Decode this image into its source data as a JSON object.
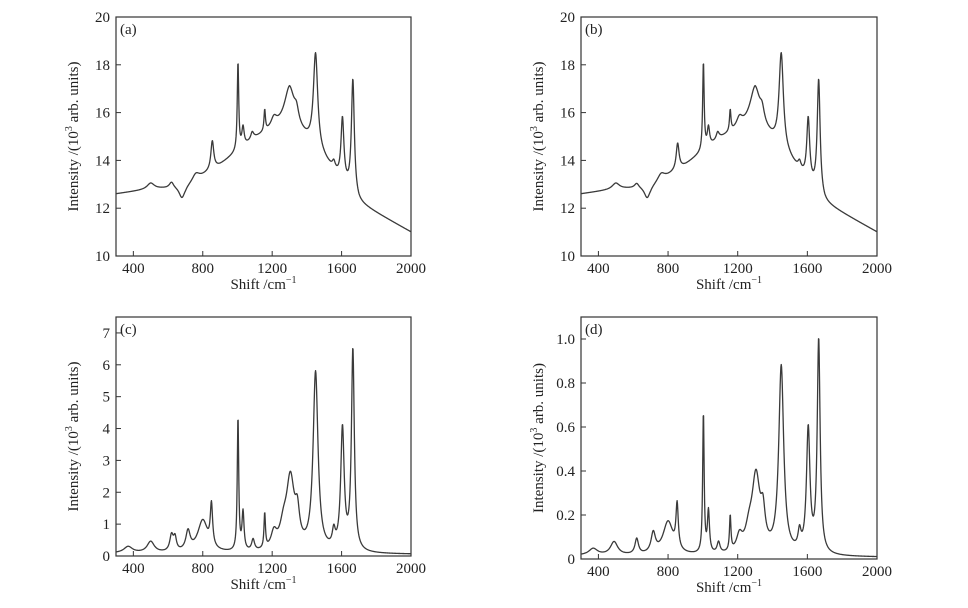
{
  "figure": {
    "panels": [
      "a",
      "b",
      "c",
      "d"
    ]
  },
  "chart_data": [
    {
      "type": "line",
      "panel_label": "(a)",
      "xlabel": "Shift /cm",
      "xlabel_sup": "−1",
      "ylabel": "Intensity /(10",
      "ylabel_sup": "3",
      "ylabel_tail": " arb. units)",
      "xlim": [
        300,
        2000
      ],
      "ylim": [
        10,
        20
      ],
      "xticks": [
        400,
        800,
        1200,
        1600,
        2000
      ],
      "yticks": [
        10,
        12,
        14,
        16,
        18,
        20
      ],
      "grid": false,
      "baseline": {
        "x": [
          300,
          500,
          700,
          900,
          1100,
          1300,
          1500,
          1700,
          2000
        ],
        "y": [
          12.6,
          12.8,
          12.9,
          13.8,
          14.9,
          15.6,
          14.0,
          12.2,
          11.0
        ]
      },
      "peaks": [
        {
          "x": 500,
          "h": 0.25,
          "w": 25
        },
        {
          "x": 620,
          "h": 0.25,
          "w": 15
        },
        {
          "x": 680,
          "h": -0.5,
          "w": 20
        },
        {
          "x": 760,
          "h": 0.3,
          "w": 25
        },
        {
          "x": 855,
          "h": 1.2,
          "w": 10
        },
        {
          "x": 1003,
          "h": 3.7,
          "w": 5
        },
        {
          "x": 1032,
          "h": 0.8,
          "w": 8
        },
        {
          "x": 1085,
          "h": 0.3,
          "w": 10
        },
        {
          "x": 1157,
          "h": 0.9,
          "w": 5
        },
        {
          "x": 1210,
          "h": 0.4,
          "w": 20
        },
        {
          "x": 1300,
          "h": 1.4,
          "w": 35
        },
        {
          "x": 1340,
          "h": 0.5,
          "w": 15
        },
        {
          "x": 1450,
          "h": 4.0,
          "w": 15
        },
        {
          "x": 1555,
          "h": 0.3,
          "w": 10
        },
        {
          "x": 1605,
          "h": 2.6,
          "w": 10
        },
        {
          "x": 1665,
          "h": 4.8,
          "w": 10
        }
      ]
    },
    {
      "type": "line",
      "panel_label": "(b)",
      "xlabel": "Shift /cm",
      "xlabel_sup": "−1",
      "ylabel": "Intensity /(10",
      "ylabel_sup": "3",
      "ylabel_tail": " arb. units)",
      "xlim": [
        300,
        2000
      ],
      "ylim": [
        10,
        20
      ],
      "xticks": [
        400,
        800,
        1200,
        1600,
        2000
      ],
      "yticks": [
        10,
        12,
        14,
        16,
        18,
        20
      ],
      "grid": false,
      "baseline": {
        "x": [
          300,
          500,
          700,
          900,
          1100,
          1300,
          1500,
          1700,
          2000
        ],
        "y": [
          12.6,
          12.8,
          12.9,
          13.8,
          14.9,
          15.6,
          14.0,
          12.2,
          11.0
        ]
      },
      "peaks": [
        {
          "x": 500,
          "h": 0.25,
          "w": 25
        },
        {
          "x": 620,
          "h": 0.2,
          "w": 15
        },
        {
          "x": 680,
          "h": -0.5,
          "w": 20
        },
        {
          "x": 760,
          "h": 0.3,
          "w": 25
        },
        {
          "x": 855,
          "h": 1.1,
          "w": 10
        },
        {
          "x": 1003,
          "h": 3.7,
          "w": 5
        },
        {
          "x": 1032,
          "h": 0.8,
          "w": 8
        },
        {
          "x": 1085,
          "h": 0.3,
          "w": 10
        },
        {
          "x": 1157,
          "h": 0.9,
          "w": 5
        },
        {
          "x": 1210,
          "h": 0.4,
          "w": 20
        },
        {
          "x": 1300,
          "h": 1.4,
          "w": 35
        },
        {
          "x": 1340,
          "h": 0.5,
          "w": 15
        },
        {
          "x": 1450,
          "h": 4.0,
          "w": 15
        },
        {
          "x": 1555,
          "h": 0.3,
          "w": 10
        },
        {
          "x": 1605,
          "h": 2.6,
          "w": 10
        },
        {
          "x": 1665,
          "h": 4.8,
          "w": 10
        }
      ]
    },
    {
      "type": "line",
      "panel_label": "(c)",
      "xlabel": "Shift /cm",
      "xlabel_sup": "−1",
      "ylabel": "Intensity /(10",
      "ylabel_sup": "3",
      "ylabel_tail": " arb. units)",
      "xlim": [
        300,
        2000
      ],
      "ylim": [
        0,
        7.5
      ],
      "xticks": [
        400,
        800,
        1200,
        1600,
        2000
      ],
      "yticks": [
        0,
        1,
        2,
        3,
        4,
        5,
        6,
        7
      ],
      "grid": false,
      "baseline": {
        "x": [
          300,
          2000
        ],
        "y": [
          0.08,
          0.05
        ]
      },
      "peaks": [
        {
          "x": 370,
          "h": 0.2,
          "w": 30
        },
        {
          "x": 500,
          "h": 0.35,
          "w": 25
        },
        {
          "x": 620,
          "h": 0.5,
          "w": 12
        },
        {
          "x": 640,
          "h": 0.4,
          "w": 10
        },
        {
          "x": 715,
          "h": 0.6,
          "w": 15
        },
        {
          "x": 800,
          "h": 1.0,
          "w": 35
        },
        {
          "x": 850,
          "h": 1.3,
          "w": 8
        },
        {
          "x": 1003,
          "h": 4.2,
          "w": 5
        },
        {
          "x": 1032,
          "h": 1.2,
          "w": 7
        },
        {
          "x": 1090,
          "h": 0.35,
          "w": 10
        },
        {
          "x": 1157,
          "h": 1.1,
          "w": 5
        },
        {
          "x": 1210,
          "h": 0.5,
          "w": 20
        },
        {
          "x": 1265,
          "h": 0.6,
          "w": 25
        },
        {
          "x": 1305,
          "h": 2.2,
          "w": 28
        },
        {
          "x": 1345,
          "h": 0.9,
          "w": 15
        },
        {
          "x": 1450,
          "h": 5.6,
          "w": 17
        },
        {
          "x": 1555,
          "h": 0.5,
          "w": 10
        },
        {
          "x": 1605,
          "h": 3.8,
          "w": 12
        },
        {
          "x": 1665,
          "h": 6.3,
          "w": 10
        }
      ]
    },
    {
      "type": "line",
      "panel_label": "(d)",
      "xlabel": "Shift /cm",
      "xlabel_sup": "−1",
      "ylabel": "Intensity /(10",
      "ylabel_sup": "3",
      "ylabel_tail": " arb. units)",
      "xlim": [
        300,
        2000
      ],
      "ylim": [
        0,
        1.1
      ],
      "xticks": [
        400,
        800,
        1200,
        1600,
        2000
      ],
      "yticks": [
        0,
        0.2,
        0.4,
        0.6,
        0.8,
        1.0
      ],
      "ytick_labels": [
        "0",
        "0.2",
        "0.4",
        "0.6",
        "0.8",
        "1.0"
      ],
      "grid": false,
      "baseline": {
        "x": [
          300,
          2000
        ],
        "y": [
          0.015,
          0.008
        ]
      },
      "peaks": [
        {
          "x": 370,
          "h": 0.03,
          "w": 30
        },
        {
          "x": 490,
          "h": 0.06,
          "w": 25
        },
        {
          "x": 620,
          "h": 0.07,
          "w": 12
        },
        {
          "x": 715,
          "h": 0.09,
          "w": 15
        },
        {
          "x": 800,
          "h": 0.15,
          "w": 35
        },
        {
          "x": 852,
          "h": 0.2,
          "w": 8
        },
        {
          "x": 1003,
          "h": 0.64,
          "w": 5
        },
        {
          "x": 1032,
          "h": 0.19,
          "w": 7
        },
        {
          "x": 1090,
          "h": 0.05,
          "w": 10
        },
        {
          "x": 1157,
          "h": 0.16,
          "w": 5
        },
        {
          "x": 1210,
          "h": 0.07,
          "w": 20
        },
        {
          "x": 1265,
          "h": 0.08,
          "w": 25
        },
        {
          "x": 1305,
          "h": 0.34,
          "w": 28
        },
        {
          "x": 1345,
          "h": 0.14,
          "w": 15
        },
        {
          "x": 1450,
          "h": 0.85,
          "w": 17
        },
        {
          "x": 1555,
          "h": 0.08,
          "w": 10
        },
        {
          "x": 1605,
          "h": 0.56,
          "w": 12
        },
        {
          "x": 1665,
          "h": 0.97,
          "w": 10
        }
      ]
    }
  ]
}
